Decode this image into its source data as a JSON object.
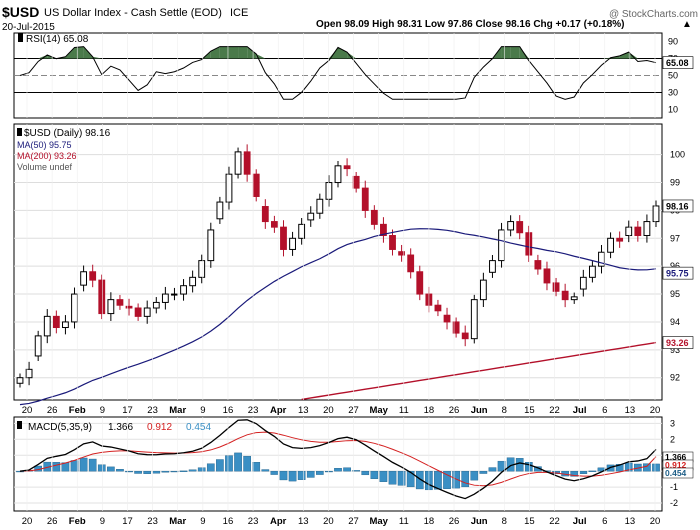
{
  "header": {
    "symbol": "$USD",
    "name": "US Dollar Index - Cash Settle (EOD)",
    "exchange": "ICE",
    "date": "20-Jul-2015",
    "watermark": "@ StockCharts.com",
    "ohlc_text": "Open 98.09   High 98.31   Low 97.86   Close 98.16   Chg +0.17 (+0.18%)",
    "ohlc_arrow": "▲"
  },
  "rsi_panel": {
    "legend": "RSI(14) 65.08",
    "ticks": [
      "90",
      "70",
      "50",
      "30",
      "10"
    ],
    "last_label": "65.08"
  },
  "price_panel": {
    "legend_lines": [
      {
        "text": "$USD (Daily) 98.16",
        "color": "#000000"
      },
      {
        "text": "MA(50) 95.75",
        "color": "#1a1a7a"
      },
      {
        "text": "MA(200) 93.26",
        "color": "#b3102a"
      },
      {
        "text": "Volume undef",
        "color": "#555555"
      }
    ],
    "ticks": [
      "100",
      "99",
      "98",
      "97",
      "96",
      "95",
      "94",
      "93",
      "92"
    ],
    "labels": {
      "close": "98.16",
      "ma50": "95.75",
      "ma200": "93.26"
    }
  },
  "macd_panel": {
    "legend_prefix": "MACD(5,35,9)",
    "legend_values": [
      {
        "text": "1.366",
        "color": "#000000"
      },
      {
        "text": "0.912",
        "color": "#d42020"
      },
      {
        "text": "0.454",
        "color": "#3a8fc4"
      }
    ],
    "ticks": [
      "3",
      "2",
      "1",
      "0",
      "-1",
      "-2"
    ],
    "last_labels": [
      "1.366",
      "0.912",
      "0.454"
    ]
  },
  "x_axis_labels": [
    "20",
    "26",
    "Feb",
    "9",
    "17",
    "23",
    "Mar",
    "9",
    "16",
    "23",
    "Apr",
    "13",
    "20",
    "27",
    "May",
    "11",
    "18",
    "26",
    "Jun",
    "8",
    "15",
    "22",
    "Jul",
    "6",
    "13",
    "20"
  ],
  "colors": {
    "up": "#000000",
    "down": "#b3102a",
    "ma50": "#1a1a7a",
    "ma200": "#b3102a",
    "macd": "#000000",
    "signal": "#d42020",
    "histogram": "#3a8fc4",
    "rsi_fill": "#4a7a4a"
  },
  "chart_data": [
    {
      "type": "line",
      "title": "RSI(14)",
      "ylim": [
        0,
        100
      ],
      "reference_lines": [
        70,
        50,
        30
      ],
      "last_value": 65.08
    },
    {
      "type": "candlestick",
      "title": "$USD (Daily)",
      "ylim": [
        91.2,
        101.1
      ],
      "x_labels": [
        "20",
        "26",
        "Feb",
        "9",
        "17",
        "23",
        "Mar",
        "9",
        "16",
        "23",
        "Apr",
        "13",
        "20",
        "27",
        "May",
        "11",
        "18",
        "26",
        "Jun",
        "8",
        "15",
        "22",
        "Jul",
        "6",
        "13",
        "20"
      ],
      "approx_closes": [
        92.0,
        92.3,
        93.5,
        94.2,
        93.8,
        94.0,
        95.0,
        95.8,
        95.5,
        94.3,
        94.8,
        94.6,
        94.5,
        94.2,
        94.5,
        94.7,
        95.0,
        95.0,
        95.3,
        95.6,
        96.2,
        97.3,
        98.3,
        99.3,
        100.1,
        99.3,
        98.5,
        97.6,
        97.4,
        96.6,
        97.0,
        97.5,
        97.9,
        98.4,
        99.0,
        99.6,
        99.5,
        98.8,
        98.0,
        97.5,
        97.1,
        96.6,
        96.4,
        95.8,
        95.0,
        94.6,
        94.4,
        94.0,
        93.6,
        93.4,
        94.8,
        95.5,
        96.2,
        97.3,
        97.6,
        97.2,
        96.4,
        95.9,
        95.4,
        95.1,
        94.8,
        94.9,
        95.6,
        96.0,
        96.5,
        97.0,
        96.9,
        97.4,
        97.1,
        97.6,
        98.16
      ],
      "ma50": {
        "name": "MA(50)",
        "last": 95.75
      },
      "ma200": {
        "name": "MA(200)",
        "last": 93.26
      }
    },
    {
      "type": "line",
      "title": "MACD(5,35,9)",
      "ylim": [
        -2.5,
        3.4
      ],
      "series": [
        {
          "name": "MACD",
          "last": 1.366
        },
        {
          "name": "Signal",
          "last": 0.912
        },
        {
          "name": "Histogram",
          "last": 0.454
        }
      ]
    }
  ]
}
